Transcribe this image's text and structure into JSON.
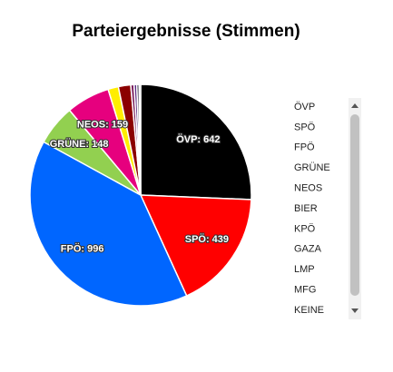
{
  "chart_data": {
    "type": "pie",
    "title": "Parteiergebnisse (Stimmen)",
    "categories": [
      "ÖVP",
      "SPÖ",
      "FPÖ",
      "GRÜNE",
      "NEOS",
      "BIER",
      "KPÖ",
      "GAZA",
      "LMP",
      "MFG",
      "KEINE"
    ],
    "values": [
      642,
      439,
      996,
      148,
      159,
      38,
      45,
      12,
      10,
      8,
      6
    ],
    "value_labels": [
      "ÖVP: 642",
      "SPÖ: 439",
      "FPÖ: 996",
      "GRÜNE: 148",
      "NEOS: 159",
      null,
      null,
      null,
      null,
      null,
      null
    ],
    "colors": [
      "#000000",
      "#ff0000",
      "#0066ff",
      "#92d050",
      "#e6007e",
      "#ffed00",
      "#8b0000",
      "#7a1f5c",
      "#5b2c83",
      "#1a1a2e",
      "#b0b0b0"
    ]
  }
}
